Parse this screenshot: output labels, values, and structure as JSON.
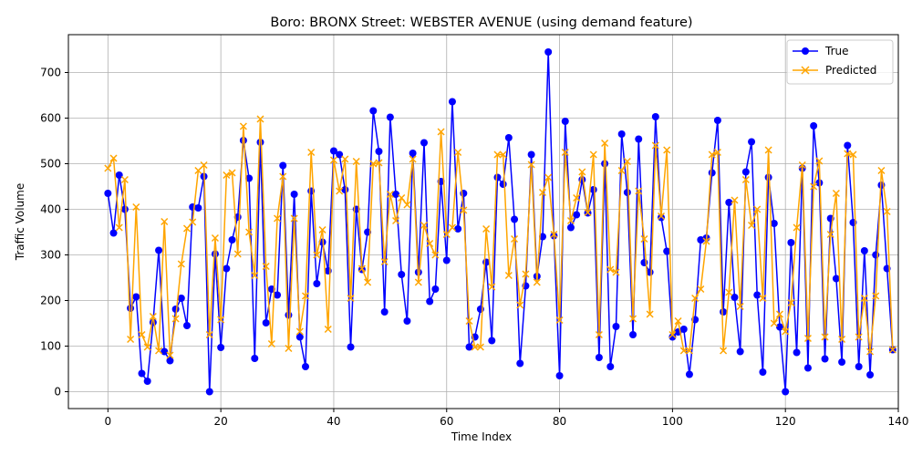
{
  "chart_data": {
    "type": "line",
    "title": "Boro: BRONX Street: WEBSTER AVENUE (using demand feature)",
    "xlabel": "Time Index",
    "ylabel": "Traffic Volume",
    "xlim": [
      -7,
      140
    ],
    "ylim": [
      -37,
      783
    ],
    "xticks": [
      0,
      20,
      40,
      60,
      80,
      100,
      120,
      140
    ],
    "yticks": [
      0,
      100,
      200,
      300,
      400,
      500,
      600,
      700
    ],
    "grid": true,
    "legend_position": "top-right",
    "colors": {
      "true": "#0000ff",
      "predicted": "#ffa500"
    },
    "series": [
      {
        "name": "True",
        "marker": "circle",
        "values": [
          435,
          348,
          475,
          400,
          183,
          208,
          40,
          23,
          152,
          310,
          88,
          68,
          181,
          205,
          145,
          405,
          403,
          472,
          0,
          302,
          97,
          270,
          333,
          383,
          551,
          468,
          73,
          547,
          151,
          225,
          212,
          496,
          168,
          433,
          120,
          55,
          440,
          237,
          328,
          265,
          528,
          520,
          443,
          98,
          400,
          268,
          350,
          616,
          527,
          175,
          602,
          433,
          257,
          155,
          523,
          262,
          546,
          198,
          225,
          461,
          288,
          636,
          357,
          435,
          98,
          120,
          181,
          284,
          112,
          470,
          455,
          557,
          378,
          62,
          232,
          520,
          253,
          340,
          745,
          342,
          35,
          593,
          360,
          388,
          465,
          392,
          443,
          75,
          500,
          55,
          143,
          565,
          437,
          125,
          554,
          283,
          262,
          603,
          382,
          308,
          120,
          131,
          137,
          38,
          158,
          333,
          337,
          480,
          595,
          175,
          415,
          207,
          88,
          482,
          548,
          212,
          43,
          470,
          369,
          142,
          0,
          327,
          86,
          490,
          52,
          583,
          458,
          72,
          380,
          248,
          65,
          540,
          371,
          55,
          309,
          37,
          300,
          453,
          270,
          92
        ]
      },
      {
        "name": "Predicted",
        "marker": "x",
        "values": [
          490,
          512,
          360,
          465,
          115,
          405,
          125,
          98,
          165,
          90,
          373,
          80,
          160,
          280,
          358,
          372,
          485,
          497,
          125,
          337,
          158,
          475,
          480,
          302,
          582,
          350,
          255,
          598,
          275,
          105,
          380,
          472,
          95,
          380,
          132,
          210,
          525,
          300,
          355,
          137,
          508,
          440,
          510,
          205,
          505,
          270,
          240,
          500,
          502,
          285,
          433,
          375,
          425,
          410,
          510,
          240,
          365,
          325,
          300,
          570,
          345,
          360,
          525,
          398,
          155,
          98,
          98,
          357,
          230,
          520,
          520,
          255,
          335,
          190,
          258,
          498,
          240,
          437,
          470,
          345,
          157,
          525,
          375,
          425,
          482,
          393,
          520,
          125,
          545,
          268,
          262,
          485,
          505,
          160,
          440,
          335,
          170,
          540,
          385,
          530,
          125,
          155,
          90,
          90,
          205,
          225,
          330,
          520,
          525,
          90,
          218,
          420,
          187,
          465,
          365,
          400,
          205,
          530,
          150,
          170,
          132,
          195,
          360,
          497,
          117,
          450,
          506,
          120,
          345,
          435,
          115,
          522,
          520,
          120,
          205,
          88,
          210,
          485,
          395,
          92
        ]
      }
    ]
  }
}
